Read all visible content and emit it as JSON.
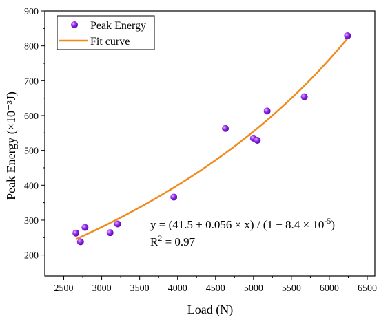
{
  "chart_data": {
    "type": "scatter",
    "xlabel": "Load (N)",
    "ylabel": "Peak Energy (×10⁻³J)",
    "xlim": [
      2250,
      6600
    ],
    "ylim": [
      140,
      900
    ],
    "xticks": [
      2500,
      3000,
      3500,
      4000,
      4500,
      5000,
      5500,
      6000,
      6500
    ],
    "yticks": [
      200,
      300,
      400,
      500,
      600,
      700,
      800,
      900
    ],
    "grid": false,
    "legend_position": "top-left",
    "series": [
      {
        "name": "Peak Energy",
        "kind": "scatter",
        "color": "#8b22e8",
        "points": [
          [
            2660,
            263
          ],
          [
            2720,
            238
          ],
          [
            2780,
            279
          ],
          [
            3110,
            264
          ],
          [
            3210,
            289
          ],
          [
            3950,
            366
          ],
          [
            4630,
            563
          ],
          [
            5000,
            535
          ],
          [
            5050,
            529
          ],
          [
            5180,
            613
          ],
          [
            5670,
            654
          ],
          [
            6240,
            829
          ]
        ]
      },
      {
        "name": "Fit curve",
        "kind": "line",
        "color": "#f08a1c",
        "x_range": [
          2660,
          6240
        ],
        "model": {
          "a": 41.5,
          "b": 0.056,
          "c": 8.4e-05
        }
      }
    ],
    "annotations": {
      "equation": "y = (41.5 + 0.056 × x) / (1 − 8.4 × 10",
      "equation_exp": "-5",
      "equation_tail": ")",
      "r2_prefix": "R",
      "r2_exp": "2",
      "r2_value": " = 0.97"
    }
  }
}
